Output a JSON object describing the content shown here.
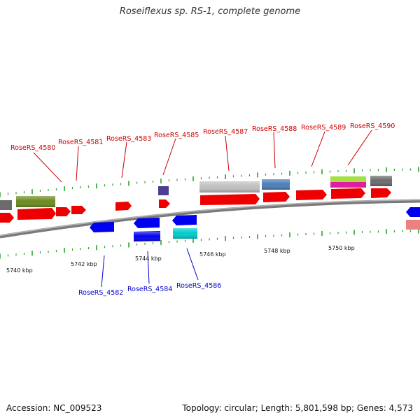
{
  "title": "Roseiflexus sp. RS-1, complete genome",
  "footer": {
    "accession": "Accession: NC_009523",
    "summary": "Topology: circular; Length: 5,801,598 bp; Genes: 4,573"
  },
  "colors": {
    "forward_label": "#cc0000",
    "reverse_label": "#0000cc",
    "backbone": "#808080",
    "tick": "#2e9e2e"
  },
  "scale": {
    "ticks": [
      "5740 kbp",
      "5742 kbp",
      "5744 kbp",
      "5746 kbp",
      "5748 kbp",
      "5750 kbp"
    ]
  },
  "forward_labels": [
    "RoseRS_4580",
    "RoseRS_4581",
    "RoseRS_4583",
    "RoseRS_4585",
    "RoseRS_4587",
    "RoseRS_4588",
    "RoseRS_4589",
    "RoseRS_4590"
  ],
  "reverse_labels": [
    "RoseRS_4582",
    "RoseRS_4584",
    "RoseRS_4586"
  ]
}
